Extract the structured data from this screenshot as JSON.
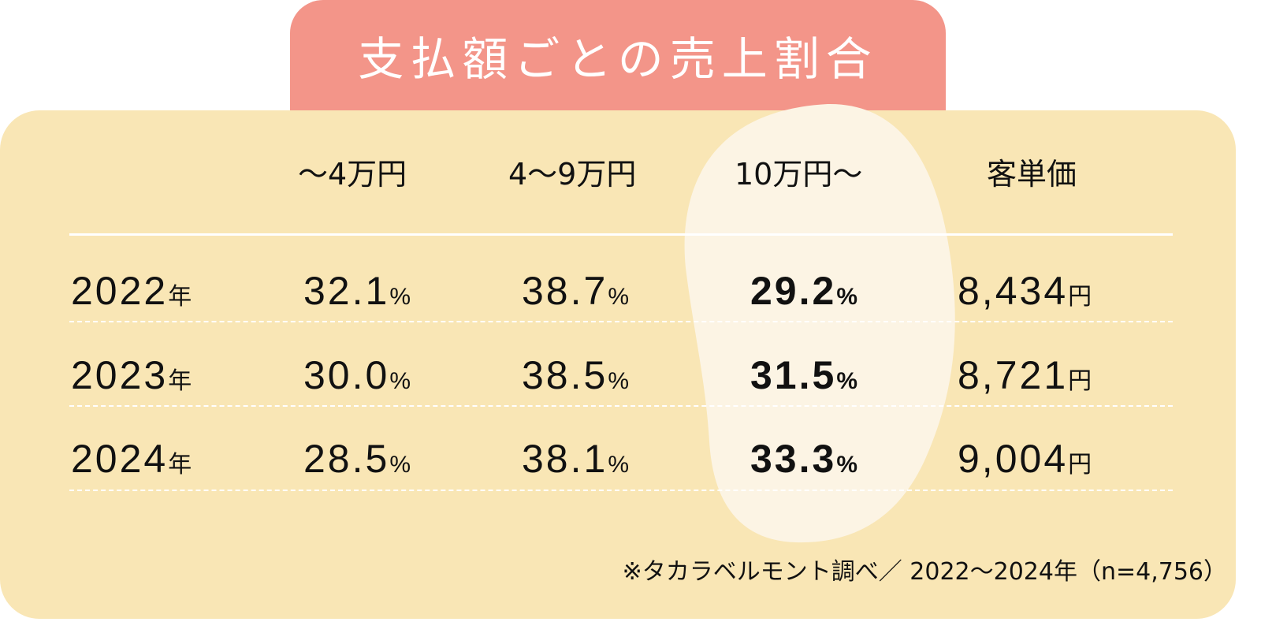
{
  "title": "支払額ごとの売上割合",
  "headers": [
    "～4万円",
    "4～9万円",
    "10万円～",
    "客単価"
  ],
  "rows": [
    {
      "year": "2022",
      "year_unit": "年",
      "c1": "32.1",
      "c2": "38.7",
      "c3": "29.2",
      "avg": "8,434"
    },
    {
      "year": "2023",
      "year_unit": "年",
      "c1": "30.0",
      "c2": "38.5",
      "c3": "31.5",
      "avg": "8,721"
    },
    {
      "year": "2024",
      "year_unit": "年",
      "c1": "28.5",
      "c2": "38.1",
      "c3": "33.3",
      "avg": "9,004"
    }
  ],
  "pct": "%",
  "yen": "円",
  "note": "※タカラベルモント調べ／ 2022～2024年（n=4,756）",
  "colors": {
    "tab": "#f39589",
    "panel": "#f9e6b5",
    "highlight": "#fcf4e4"
  }
}
